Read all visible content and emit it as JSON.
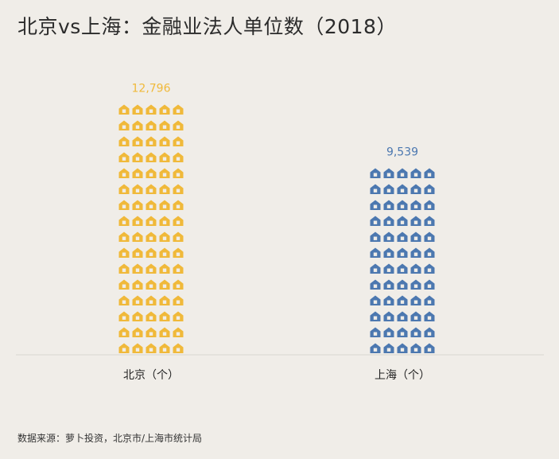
{
  "title": "北京vs上海：金融业法人单位数（2018）",
  "source": "数据来源：萝卜投资，北京市/上海市统计局",
  "colors": {
    "beijing": "#f0b93a",
    "shanghai": "#4c78b0",
    "axis": "#d9d6d1",
    "background": "#f0ede8"
  },
  "icon_name": "house-icon",
  "chart_data": {
    "type": "bar",
    "title": "北京vs上海：金融业法人单位数（2018）",
    "categories": [
      "北京（个）",
      "上海（个）"
    ],
    "values": [
      12796,
      9539
    ],
    "value_labels": [
      "12,796",
      "9,539"
    ],
    "xlabel": "",
    "ylabel": "",
    "grid": false,
    "legend": "none"
  }
}
